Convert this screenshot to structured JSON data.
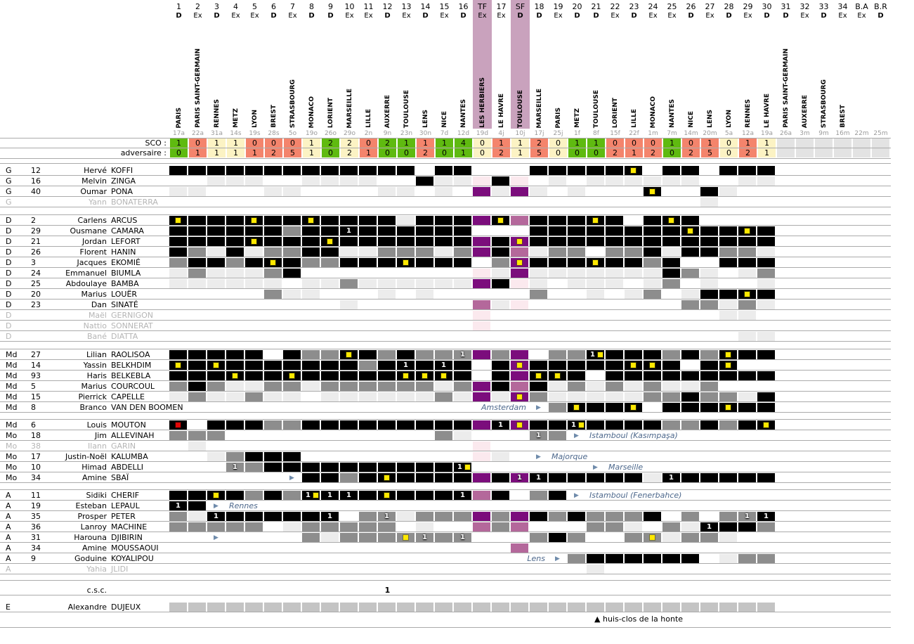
{
  "labels": {
    "sco": "SCO :",
    "adversaire": "adversaire :",
    "csc": "c.s.c."
  },
  "note": {
    "marker": "▲",
    "text": "huis-clos de la honte"
  },
  "colors": {
    "score_win": "#5fba10",
    "score_draw": "#fcf3c4",
    "score_loss": "#f4846c",
    "score_future": "#e3e3e3",
    "cell_starter": "#000000",
    "cell_substitute": "#8d8d8d",
    "cell_bench": "#ececec",
    "cell_cup_starter": "#7b0d7c",
    "cell_cup_substitute": "#b4689b",
    "cell_cup_bench": "#fbe9ee",
    "cell_coach": "#c4c4c4",
    "cup_column_band": "#c9a2bd",
    "yellow_card": "#ffe800",
    "red_card": "#e00707",
    "transfer_text": "#4d688c"
  },
  "columns": [
    {
      "id": "1",
      "type": "D",
      "opp": "PARIS",
      "date": "17a",
      "sco": "1",
      "adv": "0",
      "res": "W"
    },
    {
      "id": "2",
      "type": "Ex",
      "opp": "PARIS SAINT-GERMAIN",
      "date": "22a",
      "sco": "0",
      "adv": "1",
      "res": "L"
    },
    {
      "id": "3",
      "type": "D",
      "opp": "RENNES",
      "date": "31a",
      "sco": "1",
      "adv": "1",
      "res": "D"
    },
    {
      "id": "4",
      "type": "Ex",
      "opp": "METZ",
      "date": "14s",
      "sco": "1",
      "adv": "1",
      "res": "D"
    },
    {
      "id": "5",
      "type": "Ex",
      "opp": "LYON",
      "date": "19s",
      "sco": "0",
      "adv": "1",
      "res": "L"
    },
    {
      "id": "6",
      "type": "D",
      "opp": "BREST",
      "date": "28s",
      "sco": "0",
      "adv": "2",
      "res": "L"
    },
    {
      "id": "7",
      "type": "Ex",
      "opp": "STRASBOURG",
      "date": "5o",
      "sco": "0",
      "adv": "5",
      "res": "L"
    },
    {
      "id": "8",
      "type": "D",
      "opp": "MONACO",
      "date": "19o",
      "sco": "1",
      "adv": "1",
      "res": "D"
    },
    {
      "id": "9",
      "type": "D",
      "opp": "LORIENT",
      "date": "26o",
      "sco": "2",
      "adv": "0",
      "res": "W"
    },
    {
      "id": "10",
      "type": "Ex",
      "opp": "MARSEILLE",
      "date": "29o",
      "sco": "2",
      "adv": "2",
      "res": "D"
    },
    {
      "id": "11",
      "type": "Ex",
      "opp": "LILLE",
      "date": "2n",
      "sco": "0",
      "adv": "1",
      "res": "L"
    },
    {
      "id": "12",
      "type": "D",
      "opp": "AUXERRE",
      "date": "9n",
      "sco": "2",
      "adv": "0",
      "res": "W"
    },
    {
      "id": "13",
      "type": "Ex",
      "opp": "TOULOUSE",
      "date": "23n",
      "sco": "1",
      "adv": "0",
      "res": "W"
    },
    {
      "id": "14",
      "type": "D",
      "opp": "LENS",
      "date": "30n",
      "sco": "1",
      "adv": "2",
      "res": "L"
    },
    {
      "id": "15",
      "type": "Ex",
      "opp": "NICE",
      "date": "7d",
      "sco": "1",
      "adv": "0",
      "res": "W"
    },
    {
      "id": "16",
      "type": "D",
      "opp": "NANTES",
      "date": "12d",
      "sco": "4",
      "adv": "1",
      "res": "W"
    },
    {
      "id": "TF",
      "type": "Ex",
      "opp": "LES HERBIERS",
      "date": "19d",
      "sco": "0",
      "adv": "0",
      "res": "D",
      "cup": true
    },
    {
      "id": "17",
      "type": "Ex",
      "opp": "LE HAVRE",
      "date": "4j",
      "sco": "1",
      "adv": "2",
      "res": "L"
    },
    {
      "id": "SF",
      "type": "D",
      "opp": "TOULOUSE",
      "date": "10j",
      "sco": "1",
      "adv": "1",
      "res": "D",
      "cup": true
    },
    {
      "id": "18",
      "type": "D",
      "opp": "MARSEILLE",
      "date": "17j",
      "sco": "2",
      "adv": "5",
      "res": "L"
    },
    {
      "id": "19",
      "type": "Ex",
      "opp": "PARIS",
      "date": "25j",
      "sco": "0",
      "adv": "0",
      "res": "D"
    },
    {
      "id": "20",
      "type": "D",
      "opp": "METZ",
      "date": "1f",
      "sco": "1",
      "adv": "0",
      "res": "W"
    },
    {
      "id": "21",
      "type": "D",
      "opp": "TOULOUSE",
      "date": "8f",
      "sco": "1",
      "adv": "0",
      "res": "W"
    },
    {
      "id": "22",
      "type": "Ex",
      "opp": "LORIENT",
      "date": "15f",
      "sco": "0",
      "adv": "2",
      "res": "L"
    },
    {
      "id": "23",
      "type": "D",
      "opp": "LILLE",
      "date": "22f",
      "sco": "0",
      "adv": "1",
      "res": "L"
    },
    {
      "id": "24",
      "type": "Ex",
      "opp": "MONACO",
      "date": "1m",
      "sco": "0",
      "adv": "2",
      "res": "L"
    },
    {
      "id": "25",
      "type": "Ex",
      "opp": "NANTES",
      "date": "7m",
      "sco": "1",
      "adv": "0",
      "res": "W"
    },
    {
      "id": "26",
      "type": "D",
      "opp": "NICE",
      "date": "14m",
      "sco": "0",
      "adv": "2",
      "res": "L"
    },
    {
      "id": "27",
      "type": "Ex",
      "opp": "LENS",
      "date": "20m",
      "sco": "1",
      "adv": "5",
      "res": "L"
    },
    {
      "id": "28",
      "type": "D",
      "opp": "LYON",
      "date": "5a",
      "sco": "0",
      "adv": "0",
      "res": "D"
    },
    {
      "id": "29",
      "type": "Ex",
      "opp": "RENNES",
      "date": "12a",
      "sco": "1",
      "adv": "2",
      "res": "L"
    },
    {
      "id": "30",
      "type": "D",
      "opp": "LE HAVRE",
      "date": "19a",
      "sco": "1",
      "adv": "1",
      "res": "D"
    },
    {
      "id": "31",
      "type": "D",
      "opp": "PARIS SAINT-GERMAIN",
      "date": "26a",
      "sco": "",
      "adv": "",
      "res": "F"
    },
    {
      "id": "32",
      "type": "Ex",
      "opp": "AUXERRE",
      "date": "3m",
      "sco": "",
      "adv": "",
      "res": "F"
    },
    {
      "id": "33",
      "type": "D",
      "opp": "STRASBOURG",
      "date": "9m",
      "sco": "",
      "adv": "",
      "res": "F"
    },
    {
      "id": "34",
      "type": "Ex",
      "opp": "BREST",
      "date": "16m",
      "sco": "",
      "adv": "",
      "res": "F"
    },
    {
      "id": "B.A",
      "type": "Ex",
      "opp": "",
      "date": "22m",
      "sco": "",
      "adv": "",
      "res": "F"
    },
    {
      "id": "B.R",
      "type": "D",
      "opp": "",
      "date": "25m",
      "sco": "",
      "adv": "",
      "res": "F"
    }
  ],
  "groups": [
    {
      "players": [
        {
          "pos": "G",
          "num": "12",
          "first": "Hervé",
          "last": "KOFFI",
          "cells": "K K K K K K K K K K K K K W K K W W W K K K K K Ky W K K W K K K"
        },
        {
          "pos": "G",
          "num": "16",
          "first": "Melvin",
          "last": "ZINGA",
          "cells": "W W L L L W W L L L L W W K L L p K p W L W L L L L L L W W L L"
        },
        {
          "pos": "G",
          "num": "40",
          "first": "Oumar",
          "last": "PONA",
          "cells": "L L W W W L L W W W W L L W L W P L P L W L W W W Ky W W K L W W"
        },
        {
          "pos": "G",
          "num": "",
          "first": "Yann",
          "last": "BONATERRA",
          "inactive": true,
          "cells": "W W W W W W W W W W W W W W W W W W W W W W W W W W W W L W W W"
        }
      ]
    },
    {
      "players": [
        {
          "pos": "D",
          "num": "2",
          "first": "Carlens",
          "last": "ARCUS",
          "cells": "Ky K K K Ky K K Ky K K K K L K K K P Ky M K K K Ky K W K Ky K W W W W"
        },
        {
          "pos": "D",
          "num": "29",
          "first": "Ousmane",
          "last": "CAMARA",
          "cells": "K K K K K K G K K K1 K K K K K K W W W K K K K K K K K Ky K K Ky K"
        },
        {
          "pos": "D",
          "num": "21",
          "first": "Jordan",
          "last": "LEFORT",
          "cells": "K K K K Ky K K K Ky K K K K K K K P K Py K K K K K K K K K K K K K"
        },
        {
          "pos": "D",
          "num": "26",
          "first": "Florent",
          "last": "HANIN",
          "cells": "K G L K L G G K K L L G G G L G P K M L G G W G G K L K K G G L"
        },
        {
          "pos": "D",
          "num": "3",
          "first": "Jacques",
          "last": "EKOMIÉ",
          "cells": "G K K G K Ky K G G K K K Ky K K K W G Py K K K Ky K K G K W W K K K"
        },
        {
          "pos": "D",
          "num": "24",
          "first": "Emmanuel",
          "last": "BIUMLA",
          "cells": "L G L L L G K W W W W W W W W W p L P L L L L L L L K G L W L G"
        },
        {
          "pos": "D",
          "num": "25",
          "first": "Abdoulaye",
          "last": "BAMBA",
          "cells": "L L L L L L W L L G L L L L L L P K p L W L L L W L G W L W W L"
        },
        {
          "pos": "D",
          "num": "20",
          "first": "Marius",
          "last": "LOUËR",
          "cells": "W W W W W G L L W W W L W L W W W W W G W W L W L G W L K K Ky K"
        },
        {
          "pos": "D",
          "num": "23",
          "first": "Dan",
          "last": "SINATÉ",
          "cells": "W W W W W W W W W L W W W W W W M L p W W W W W W W W G G L G L"
        },
        {
          "pos": "D",
          "num": "",
          "first": "Maël",
          "last": "GERNIGON",
          "inactive": true,
          "cells": "W W W W W W W W W W W W W W W W p W W W W W W W W W W W W L L W"
        },
        {
          "pos": "D",
          "num": "",
          "first": "Nattio",
          "last": "SONNERAT",
          "inactive": true,
          "cells": "W W W W W W W W W W W W W W W W p W W W W W W W W W W W W W W W"
        },
        {
          "pos": "D",
          "num": "",
          "first": "Bané",
          "last": "DIATTA",
          "inactive": true,
          "cells": "W W W W W W W W W W W W W W W W W W W W W W W W W W W W W W L L"
        }
      ]
    },
    {
      "players": [
        {
          "pos": "Md",
          "num": "27",
          "first": "Lilian",
          "last": "RAOLISOA",
          "cells": "K K K K K W K G G Ky K G K G G G1 P G P W G G K1y K K K G K G Ky K K"
        },
        {
          "pos": "Md",
          "num": "14",
          "first": "Yassin",
          "last": "BELKHDIM",
          "cells": "Ky K Ky K K K K K K K G K K1 K K1 K W K Py K K K K K Ky Ky K W K Ky W W"
        },
        {
          "pos": "Md",
          "num": "93",
          "first": "Haris",
          "last": "BELKEBLA",
          "cells": "K K K Ky K K Ky K K K K K Ky Ky Ky K W K P Ky Ky K W K K K K K K K K K"
        },
        {
          "pos": "Md",
          "num": "5",
          "first": "Marius",
          "last": "COURCOUL",
          "cells": "G K G L L G G L G G G G G G L G P K M K L G L G L G L L G W W W"
        },
        {
          "pos": "Md",
          "num": "15",
          "first": "Pierrick",
          "last": "CAPELLE",
          "cells": "L G L L G L L W L L L L L L G L P L Py G L L L L L G G K G G L K"
        },
        {
          "pos": "Md",
          "num": "8",
          "first": "Branco",
          "last": "VAN DEN BOOMEN",
          "cells": "W W W W W W W W W W W W W W W W W W W W G Ky K K Ky W K K K Ky K K",
          "transfer": {
            "col": 19,
            "text": "Amsterdam",
            "side": "before"
          }
        }
      ]
    },
    {
      "players": [
        {
          "pos": "Md",
          "num": "6",
          "first": "Louis",
          "last": "MOUTON",
          "cells": "Kr W K K K G G K K K K K K K K K P K1 Py K K K1y K K K K G G K G K Ky"
        },
        {
          "pos": "Mo",
          "num": "18",
          "first": "Jim",
          "last": "ALLEVINAH",
          "cells": "G G G W W W W W W W W W W W G L W W W G1 G W W W W W W W W W W W",
          "transfer": {
            "col": 21,
            "text": "Istamboul (Kasımpaşa)",
            "side": "after"
          }
        },
        {
          "pos": "Mo",
          "num": "38",
          "first": "Ilann",
          "last": "GARIN",
          "inactive": true,
          "cells": "W L W W W W W W W W W W W W W W p W W W W W W W W W W W W W W W"
        },
        {
          "pos": "Mo",
          "num": "17",
          "first": "Justin-Noël",
          "last": "KALUMBA",
          "cells": "W W L G K K K W W W W W W W W W p L W W W W W W W W W W W W W W",
          "transfer": {
            "col": 19,
            "text": "Majorque",
            "side": "after"
          }
        },
        {
          "pos": "Mo",
          "num": "10",
          "first": "Himad",
          "last": "ABDELLI",
          "cells": "W W W G1 G K K K K K K K K K K K1y W W W W W W W W W W W W W W W W",
          "transfer": {
            "col": 22,
            "text": "Marseille",
            "side": "after"
          }
        },
        {
          "pos": "Mo",
          "num": "34",
          "first": "Amine",
          "last": "SBAÏ",
          "cells": "W W W W W W W K K G K Ky K K K K P K P1 K1 K K K K K L K1 K K K K K",
          "transfer": {
            "col": 6,
            "text": "",
            "side": "after"
          }
        }
      ]
    },
    {
      "players": [
        {
          "pos": "A",
          "num": "11",
          "first": "Sidiki",
          "last": "CHERIF",
          "cells": "K K Ky K G K G K1y K1 K1 K Ky K K K K1 M K W G K W W W W W W W W W W W",
          "transfer": {
            "col": 21,
            "text": "Istamboul (Fenerbahce)",
            "side": "after"
          }
        },
        {
          "pos": "A",
          "num": "19",
          "first": "Esteban",
          "last": "LEPAUL",
          "cells": "K1 K W W W W W W W W W W W W W W W W W W W W W W W W W W W W W W",
          "transfer": {
            "col": 2,
            "text": "Rennes",
            "side": "after"
          }
        },
        {
          "pos": "A",
          "num": "35",
          "first": "Prosper",
          "last": "PETER",
          "cells": "G L K1 K K K K K K1 W G G1 L G G G P G P K G K G G G K W G W G G1 K1"
        },
        {
          "pos": "A",
          "num": "36",
          "first": "Lanroy",
          "last": "MACHINE",
          "cells": "G G G G G W L G G G G G W L W W M G M W W W G G L W G L K1 K K G"
        },
        {
          "pos": "A",
          "num": "31",
          "first": "Harouna",
          "last": "DJIBIRIN",
          "cells": "W W W W W W W G L G G G Gy G1 G G1 W W W G K G W W G Gy L G G L W W",
          "transfer": {
            "col": 2,
            "text": "",
            "side": "after"
          }
        },
        {
          "pos": "A",
          "num": "34",
          "first": "Amine",
          "last": "MOUSSAOUI",
          "cells": "W W W W W W W W W W W W W W W W W W M W W W W W W W W W W W W W"
        },
        {
          "pos": "A",
          "num": "9",
          "first": "Goduine",
          "last": "KOYALIPOU",
          "cells": "W W W W W W W W W W W W W W W W W W W W W G K K K K K K W L G G",
          "transfer": {
            "col": 20,
            "text": "Lens",
            "side": "before"
          }
        },
        {
          "pos": "A",
          "num": "",
          "first": "Yahia",
          "last": "JLIDI",
          "inactive": true,
          "cells": "W W W W W W W W W W W W W W W W W W W W W W L W W W W W W W W W"
        }
      ]
    }
  ],
  "csc": {
    "label": "c.s.c.",
    "goals": [
      {
        "col": 11,
        "value": "1"
      }
    ]
  },
  "staff": {
    "pos": "E",
    "num": "",
    "first": "Alexandre",
    "last": "DUJEUX",
    "cells": "C C C C C C C C C C C C C C C C C C C C C C C C C C C C C C C C"
  }
}
